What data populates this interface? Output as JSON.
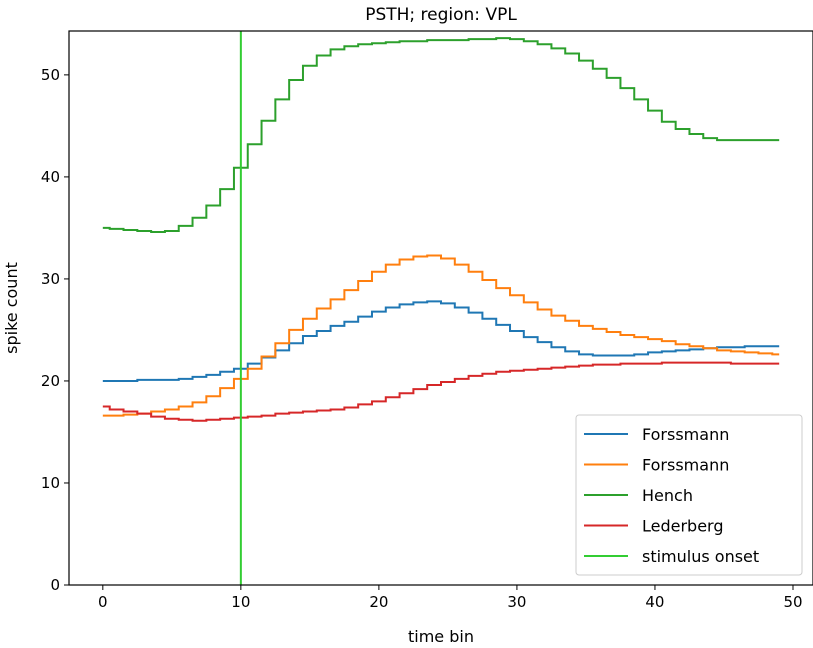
{
  "chart_data": {
    "type": "line",
    "title": "PSTH; region: VPL",
    "xlabel": "time bin",
    "ylabel": "spike count",
    "xlim": [
      -2.45,
      51.45
    ],
    "ylim": [
      0,
      54.3
    ],
    "xticks": [
      0,
      10,
      20,
      30,
      40,
      50
    ],
    "xtick_labels": [
      "0",
      "10",
      "20",
      "30",
      "40",
      "50"
    ],
    "yticks": [
      0,
      10,
      20,
      30,
      40,
      50
    ],
    "ytick_labels": [
      "0",
      "10",
      "20",
      "30",
      "40",
      "50"
    ],
    "grid": false,
    "legend_position": "lower-right",
    "drawstyle": "steps-mid",
    "x": [
      0,
      1,
      2,
      3,
      4,
      5,
      6,
      7,
      8,
      9,
      10,
      11,
      12,
      13,
      14,
      15,
      16,
      17,
      18,
      19,
      20,
      21,
      22,
      23,
      24,
      25,
      26,
      27,
      28,
      29,
      30,
      31,
      32,
      33,
      34,
      35,
      36,
      37,
      38,
      39,
      40,
      41,
      42,
      43,
      44,
      45,
      46,
      47,
      48,
      49
    ],
    "series": [
      {
        "name": "Forssmann",
        "color": "#1f77b4",
        "values": [
          20.0,
          20.0,
          20.0,
          20.1,
          20.1,
          20.1,
          20.2,
          20.4,
          20.6,
          20.9,
          21.2,
          21.7,
          22.3,
          23.0,
          23.7,
          24.4,
          24.9,
          25.4,
          25.8,
          26.3,
          26.8,
          27.2,
          27.5,
          27.7,
          27.8,
          27.6,
          27.2,
          26.7,
          26.1,
          25.5,
          24.9,
          24.3,
          23.8,
          23.3,
          22.9,
          22.6,
          22.5,
          22.5,
          22.5,
          22.6,
          22.8,
          22.9,
          23.0,
          23.1,
          23.2,
          23.3,
          23.3,
          23.4,
          23.4,
          23.4
        ]
      },
      {
        "name": "Forssmann",
        "color": "#ff7f0e",
        "values": [
          16.6,
          16.6,
          16.7,
          16.8,
          17.0,
          17.2,
          17.5,
          17.9,
          18.5,
          19.3,
          20.2,
          21.2,
          22.4,
          23.7,
          25.0,
          26.1,
          27.1,
          28.0,
          28.9,
          29.8,
          30.7,
          31.4,
          31.9,
          32.2,
          32.3,
          32.0,
          31.4,
          30.7,
          29.9,
          29.1,
          28.4,
          27.7,
          27.0,
          26.4,
          25.9,
          25.4,
          25.1,
          24.8,
          24.5,
          24.3,
          24.1,
          23.9,
          23.6,
          23.4,
          23.2,
          23.0,
          22.9,
          22.8,
          22.7,
          22.6
        ]
      },
      {
        "name": "Hench",
        "color": "#2ca02c",
        "values": [
          35.0,
          34.9,
          34.8,
          34.7,
          34.6,
          34.7,
          35.2,
          36.0,
          37.2,
          38.8,
          40.9,
          43.2,
          45.5,
          47.6,
          49.5,
          50.9,
          51.9,
          52.5,
          52.8,
          53.0,
          53.1,
          53.2,
          53.3,
          53.3,
          53.4,
          53.4,
          53.4,
          53.5,
          53.5,
          53.6,
          53.5,
          53.3,
          53.0,
          52.6,
          52.1,
          51.4,
          50.6,
          49.7,
          48.7,
          47.6,
          46.5,
          45.4,
          44.7,
          44.2,
          43.8,
          43.6,
          43.6,
          43.6,
          43.6,
          43.6
        ]
      },
      {
        "name": "Lederberg",
        "color": "#d62728",
        "values": [
          17.5,
          17.2,
          17.0,
          16.8,
          16.5,
          16.3,
          16.2,
          16.1,
          16.2,
          16.3,
          16.4,
          16.5,
          16.6,
          16.8,
          16.9,
          17.0,
          17.1,
          17.2,
          17.4,
          17.7,
          18.0,
          18.4,
          18.8,
          19.2,
          19.6,
          19.9,
          20.2,
          20.5,
          20.7,
          20.9,
          21.0,
          21.1,
          21.2,
          21.3,
          21.4,
          21.5,
          21.6,
          21.6,
          21.7,
          21.7,
          21.7,
          21.8,
          21.8,
          21.8,
          21.8,
          21.8,
          21.7,
          21.7,
          21.7,
          21.7
        ]
      }
    ],
    "vline": {
      "name": "stimulus onset",
      "x": 10,
      "color": "#32cd32"
    }
  }
}
